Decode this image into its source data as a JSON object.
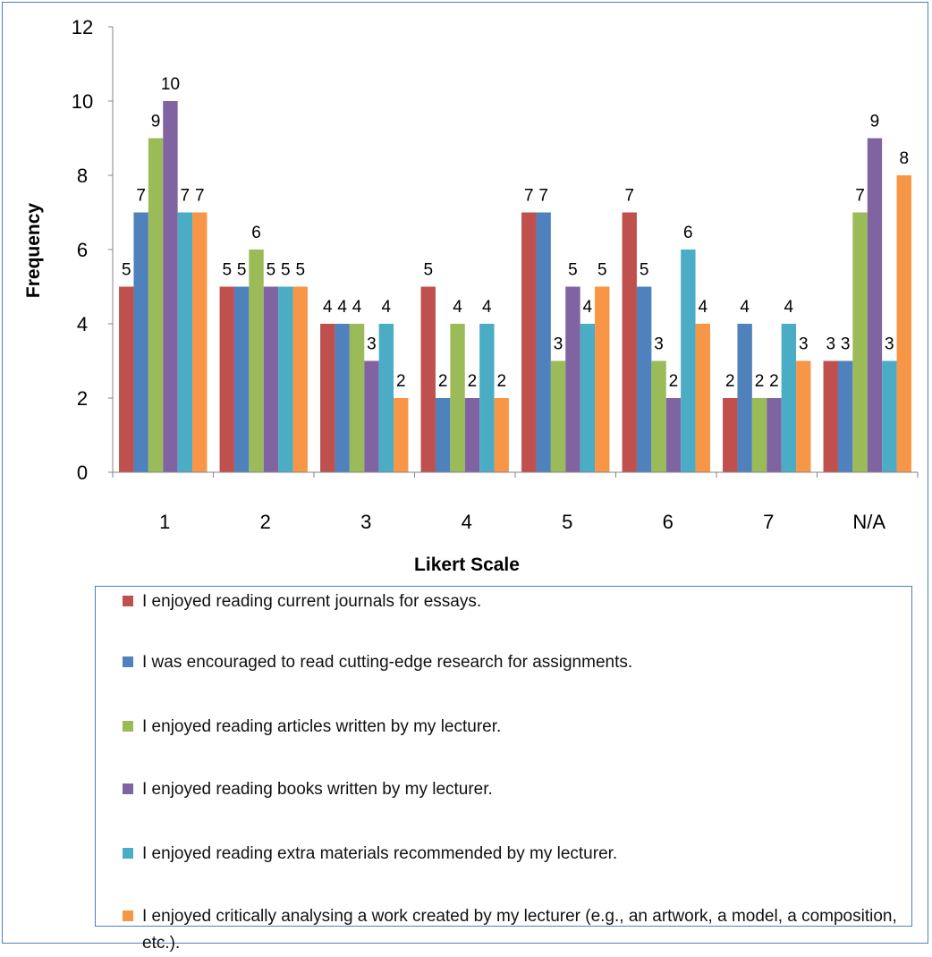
{
  "chart_data": {
    "type": "bar",
    "title": "",
    "xlabel": "Likert Scale",
    "ylabel": "Frequency",
    "ylim": [
      0,
      12
    ],
    "yticks": [
      0,
      2,
      4,
      6,
      8,
      10,
      12
    ],
    "categories": [
      "1",
      "2",
      "3",
      "4",
      "5",
      "6",
      "7",
      "N/A"
    ],
    "grid": false,
    "legend_position": "bottom",
    "series": [
      {
        "name": "I enjoyed reading current journals for essays.",
        "color": "#c0504d",
        "values": [
          5,
          5,
          4,
          5,
          7,
          7,
          2,
          3
        ]
      },
      {
        "name": "I was encouraged to read cutting-edge research for assignments.",
        "color": "#4f81bd",
        "values": [
          7,
          5,
          4,
          2,
          7,
          5,
          4,
          3
        ]
      },
      {
        "name": "I enjoyed reading articles written by my lecturer.",
        "color": "#9bbb59",
        "values": [
          9,
          6,
          4,
          4,
          3,
          3,
          2,
          7
        ]
      },
      {
        "name": "I enjoyed reading books written by my lecturer.",
        "color": "#8064a2",
        "values": [
          10,
          5,
          3,
          2,
          5,
          2,
          2,
          9
        ]
      },
      {
        "name": "I enjoyed reading extra materials recommended by my lecturer.",
        "color": "#4bacc6",
        "values": [
          7,
          5,
          4,
          4,
          4,
          6,
          4,
          3
        ]
      },
      {
        "name": "I enjoyed critically analysing a work created by my lecturer (e.g., an artwork, a model, a composition, etc.).",
        "color": "#f79646",
        "values": [
          7,
          5,
          2,
          2,
          5,
          4,
          3,
          8
        ]
      }
    ]
  }
}
